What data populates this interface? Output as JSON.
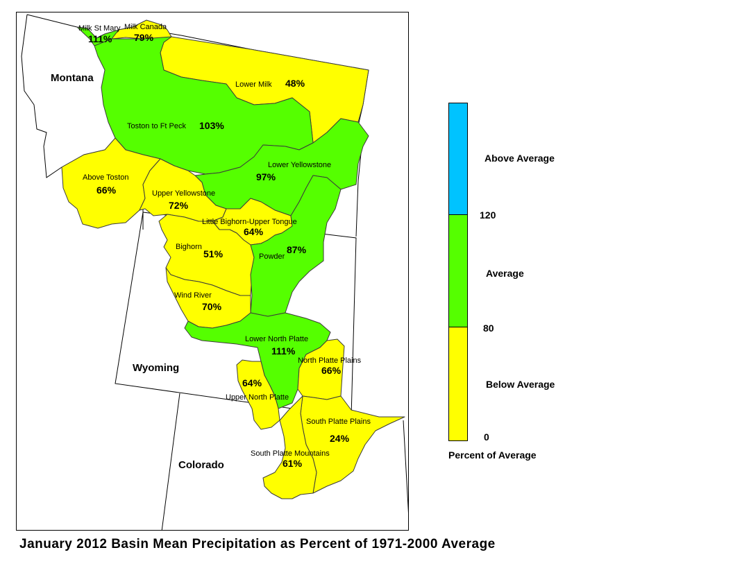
{
  "title": "January 2012 Basin Mean Precipitation as Percent of 1971-2000 Average",
  "states": [
    "Montana",
    "Wyoming",
    "Colorado"
  ],
  "colors": {
    "above": "#00c3ff",
    "average": "#55ff00",
    "below": "#ffff00",
    "state_line": "#000000",
    "basin_line": "#3a3a3a"
  },
  "legend": {
    "title": "Percent of Average",
    "classes": [
      {
        "label": "Above Average",
        "color": "#00c3ff",
        "min": 120,
        "max": null
      },
      {
        "label": "Average",
        "color": "#55ff00",
        "min": 80,
        "max": 120
      },
      {
        "label": "Below Average",
        "color": "#ffff00",
        "min": 0,
        "max": 80
      }
    ],
    "breaks": [
      "120",
      "80",
      "0"
    ]
  },
  "basins": [
    {
      "name": "Milk St Mary",
      "percent": "111%",
      "value": 111,
      "class": "average"
    },
    {
      "name": "Milk Canada",
      "percent": "79%",
      "value": 79,
      "class": "below"
    },
    {
      "name": "Lower Milk",
      "percent": "48%",
      "value": 48,
      "class": "below"
    },
    {
      "name": "Toston to Ft Peck",
      "percent": "103%",
      "value": 103,
      "class": "average"
    },
    {
      "name": "Lower Yellowstone",
      "percent": "97%",
      "value": 97,
      "class": "average"
    },
    {
      "name": "Above Toston",
      "percent": "66%",
      "value": 66,
      "class": "below"
    },
    {
      "name": "Upper Yellowstone",
      "percent": "72%",
      "value": 72,
      "class": "below"
    },
    {
      "name": "Little Bighorn-Upper Tongue",
      "percent": "64%",
      "value": 64,
      "class": "below"
    },
    {
      "name": "Bighorn",
      "percent": "51%",
      "value": 51,
      "class": "below"
    },
    {
      "name": "Powder",
      "percent": "87%",
      "value": 87,
      "class": "average"
    },
    {
      "name": "Wind River",
      "percent": "70%",
      "value": 70,
      "class": "below"
    },
    {
      "name": "Lower North Platte",
      "percent": "111%",
      "value": 111,
      "class": "average"
    },
    {
      "name": "North Platte Plains",
      "percent": "66%",
      "value": 66,
      "class": "below"
    },
    {
      "name": "Upper North Platte",
      "percent": "64%",
      "value": 64,
      "class": "below"
    },
    {
      "name": "South Platte Plains",
      "percent": "24%",
      "value": 24,
      "class": "below"
    },
    {
      "name": "South Platte Mountains",
      "percent": "61%",
      "value": 61,
      "class": "below"
    }
  ]
}
